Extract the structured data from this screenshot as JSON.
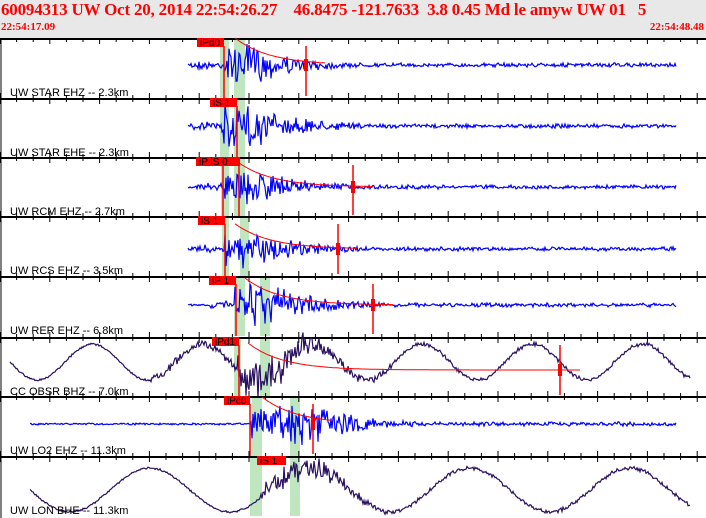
{
  "header": {
    "title": "60094313 UW Oct 20, 2014 22:54:26.27    46.8475 -121.7633  3.8 0.45 Md le amyw UW 01   5",
    "start_time": "22:54:17.09",
    "end_time": "22:54:48.48"
  },
  "colors": {
    "pick": "#ff0000",
    "trace_short_period": "#0000ff",
    "trace_broadband": "#2a1060",
    "window": "#bfe6bf",
    "header_bg": "#e8e8e8"
  },
  "traces": [
    {
      "label": "UW STAR EHZ -- 2.3km",
      "picks": [
        "iPd0"
      ]
    },
    {
      "label": "UW STAR EHE -- 2.3km",
      "picks": [
        "iS 1"
      ]
    },
    {
      "label": "UW RCM EHZ -- 2.7km",
      "picks": [
        "iP  iS 0"
      ]
    },
    {
      "label": "UW RCS EHZ -- 3.5km",
      "picks": [
        "iS 1"
      ]
    },
    {
      "label": "UW RER EHZ -- 6.8km",
      "picks": [
        "iP 1"
      ]
    },
    {
      "label": "CC OBSR BHZ -- 7.0km",
      "picks": [
        "iPd1"
      ]
    },
    {
      "label": "UW LO2 EHZ -- 11.3km",
      "picks": [
        "iPc0"
      ]
    },
    {
      "label": "UW LON BHE -- 11.3km",
      "picks": [
        "iS 1"
      ]
    }
  ]
}
